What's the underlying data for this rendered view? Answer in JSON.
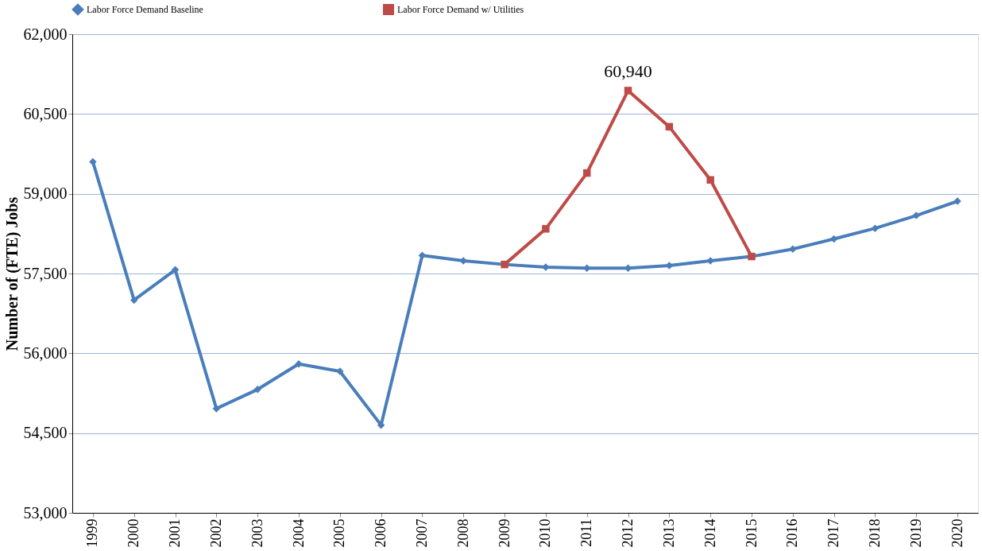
{
  "chart_data": {
    "type": "line",
    "ylabel": "Number of  (FTE)  Jobs",
    "categories": [
      "1999",
      "2000",
      "2001",
      "2002",
      "2003",
      "2004",
      "2005",
      "2006",
      "2007",
      "2008",
      "2009",
      "2010",
      "2011",
      "2012",
      "2013",
      "2014",
      "2015",
      "2016",
      "2017",
      "2018",
      "2019",
      "2020"
    ],
    "series": [
      {
        "name": "Labor Force Demand Baseline",
        "color": "#4a7ebb",
        "marker": "diamond",
        "values": [
          59600,
          57000,
          57570,
          54960,
          55320,
          55800,
          55660,
          54650,
          57840,
          57740,
          57670,
          57620,
          57600,
          57600,
          57650,
          57740,
          57820,
          57960,
          58150,
          58350,
          58590,
          58860
        ]
      },
      {
        "name": "Labor Force Demand w/ Utilities",
        "color": "#be4b48",
        "marker": "square",
        "values": [
          null,
          null,
          null,
          null,
          null,
          null,
          null,
          null,
          null,
          null,
          57670,
          58340,
          59390,
          60940,
          60260,
          59260,
          57820,
          null,
          null,
          null,
          null,
          null
        ]
      }
    ],
    "ylim": [
      53000,
      62000
    ],
    "yticks": [
      {
        "value": 53000,
        "label": "53,000"
      },
      {
        "value": 54500,
        "label": "54,500"
      },
      {
        "value": 56000,
        "label": "56,000"
      },
      {
        "value": 57500,
        "label": "57,500"
      },
      {
        "value": 59000,
        "label": "59,000"
      },
      {
        "value": 60500,
        "label": "60,500"
      },
      {
        "value": 62000,
        "label": "62,000"
      }
    ],
    "annotations": [
      {
        "text": "60,940",
        "x": "2012",
        "y": 60940
      }
    ],
    "grid": "y",
    "legend": "top",
    "line_style": "solid"
  }
}
